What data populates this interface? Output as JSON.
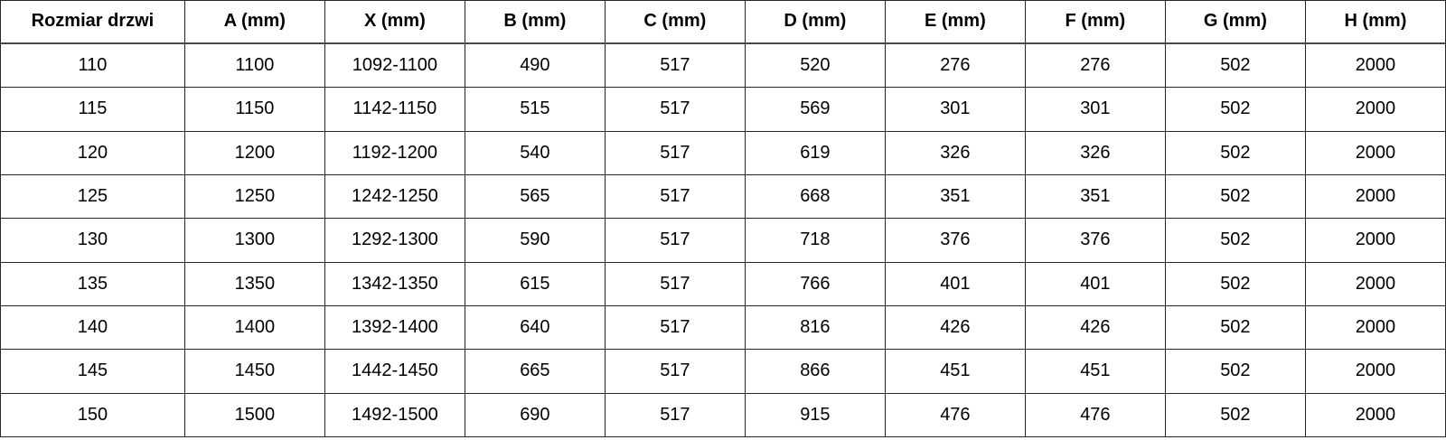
{
  "table": {
    "headers": [
      "Rozmiar drzwi",
      "A (mm)",
      "X (mm)",
      "B (mm)",
      "C (mm)",
      "D (mm)",
      "E (mm)",
      "F (mm)",
      "G (mm)",
      "H (mm)"
    ],
    "rows": [
      [
        "110",
        "1100",
        "1092-1100",
        "490",
        "517",
        "520",
        "276",
        "276",
        "502",
        "2000"
      ],
      [
        "115",
        "1150",
        "1142-1150",
        "515",
        "517",
        "569",
        "301",
        "301",
        "502",
        "2000"
      ],
      [
        "120",
        "1200",
        "1192-1200",
        "540",
        "517",
        "619",
        "326",
        "326",
        "502",
        "2000"
      ],
      [
        "125",
        "1250",
        "1242-1250",
        "565",
        "517",
        "668",
        "351",
        "351",
        "502",
        "2000"
      ],
      [
        "130",
        "1300",
        "1292-1300",
        "590",
        "517",
        "718",
        "376",
        "376",
        "502",
        "2000"
      ],
      [
        "135",
        "1350",
        "1342-1350",
        "615",
        "517",
        "766",
        "401",
        "401",
        "502",
        "2000"
      ],
      [
        "140",
        "1400",
        "1392-1400",
        "640",
        "517",
        "816",
        "426",
        "426",
        "502",
        "2000"
      ],
      [
        "145",
        "1450",
        "1442-1450",
        "665",
        "517",
        "866",
        "451",
        "451",
        "502",
        "2000"
      ],
      [
        "150",
        "1500",
        "1492-1500",
        "690",
        "517",
        "915",
        "476",
        "476",
        "502",
        "2000"
      ]
    ]
  },
  "colors": {
    "background": "#ffffff",
    "text": "#000000",
    "border": "#262626",
    "header_divider": "#4a4a4a"
  }
}
